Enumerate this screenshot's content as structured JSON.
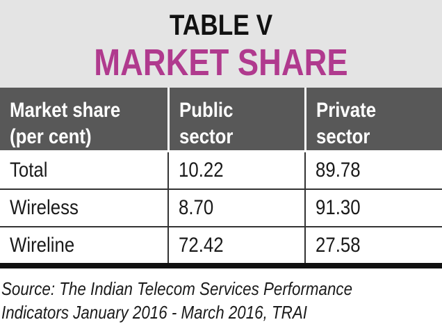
{
  "title": {
    "line1": "TABLE V",
    "line2": "MARKET SHARE"
  },
  "colors": {
    "accent": "#b03a8e",
    "header_bg": "#585858",
    "title_bg": "#e4e4e4"
  },
  "chart_data": {
    "type": "table",
    "columns": [
      "Market share\n(per cent)",
      "Public\nsector",
      "Private\nsector"
    ],
    "rows": [
      [
        "Total",
        "10.22",
        "89.78"
      ],
      [
        "Wireless",
        "8.70",
        "91.30"
      ],
      [
        "Wireline",
        "72.42",
        "27.58"
      ]
    ]
  },
  "source": {
    "line1": "Source: The Indian Telecom Services Performance",
    "line2": "Indicators January 2016 - March 2016, TRAI"
  }
}
